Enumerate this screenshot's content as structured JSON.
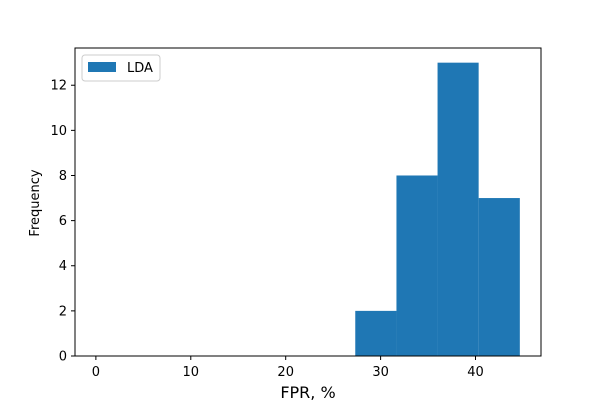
{
  "chart_data": {
    "type": "bar",
    "bins": [
      {
        "x0": 27.33,
        "x1": 31.67,
        "count": 2
      },
      {
        "x0": 31.67,
        "x1": 36.0,
        "count": 8
      },
      {
        "x0": 36.0,
        "x1": 40.33,
        "count": 13
      },
      {
        "x0": 40.33,
        "x1": 44.67,
        "count": 7
      }
    ],
    "series": [
      {
        "name": "LDA",
        "color": "#1f77b4"
      }
    ],
    "xlabel": "FPR, %",
    "ylabel": "Frequency",
    "xlim": [
      -2.2,
      46.9
    ],
    "ylim": [
      0,
      13.65
    ],
    "xticks": [
      0,
      10,
      20,
      30,
      40
    ],
    "yticks": [
      0,
      2,
      4,
      6,
      8,
      10,
      12
    ],
    "grid": false,
    "legend_position": "top-left"
  }
}
